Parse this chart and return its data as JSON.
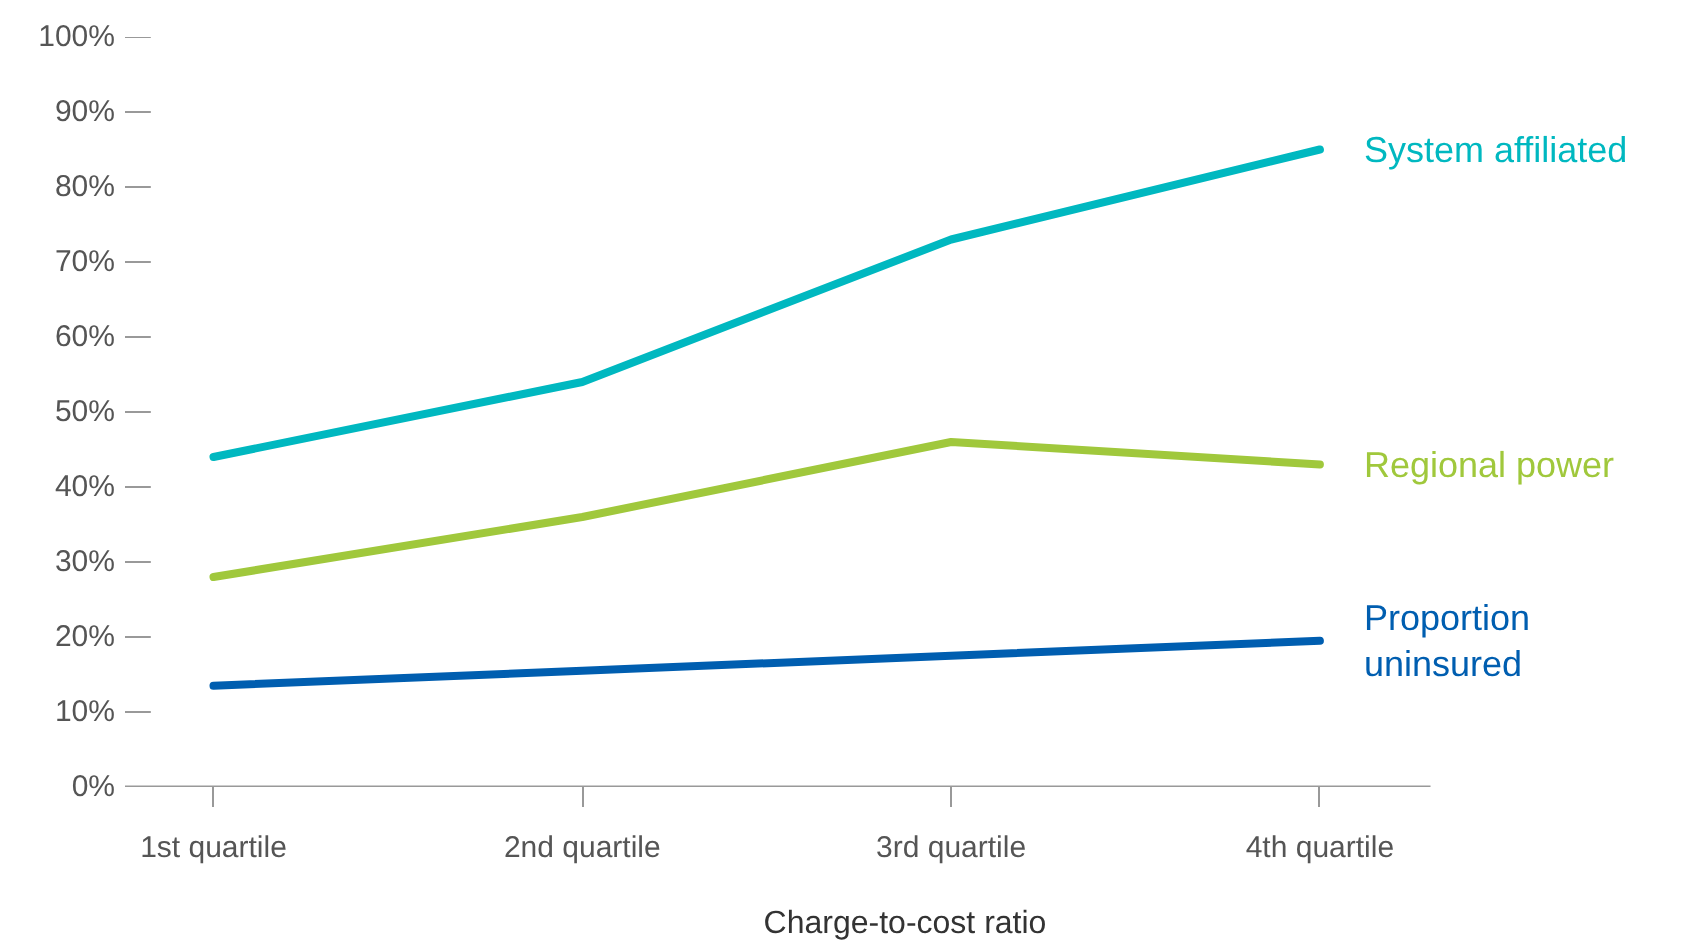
{
  "chart_data": {
    "type": "line",
    "xlabel": "Charge-to-cost ratio",
    "categories": [
      "1st quartile",
      "2nd quartile",
      "3rd quartile",
      "4th quartile"
    ],
    "ylim": [
      0,
      100
    ],
    "yticks": [
      {
        "value": 0,
        "label": "0%"
      },
      {
        "value": 10,
        "label": "10%"
      },
      {
        "value": 20,
        "label": "20%"
      },
      {
        "value": 30,
        "label": "30%"
      },
      {
        "value": 40,
        "label": "40%"
      },
      {
        "value": 50,
        "label": "50%"
      },
      {
        "value": 60,
        "label": "60%"
      },
      {
        "value": 70,
        "label": "70%"
      },
      {
        "value": 80,
        "label": "80%"
      },
      {
        "value": 90,
        "label": "90%"
      },
      {
        "value": 100,
        "label": "100%"
      }
    ],
    "grid": false,
    "series": [
      {
        "name": "System affiliated",
        "color": "#00b8c0",
        "values": [
          44,
          54,
          73,
          85
        ]
      },
      {
        "name": "Regional power",
        "color": "#a0c83c",
        "values": [
          28,
          36,
          46,
          43
        ]
      },
      {
        "name": "Proportion\nuninsured",
        "color": "#005eb0",
        "values": [
          13.5,
          15.5,
          17.5,
          19.5
        ]
      }
    ]
  }
}
